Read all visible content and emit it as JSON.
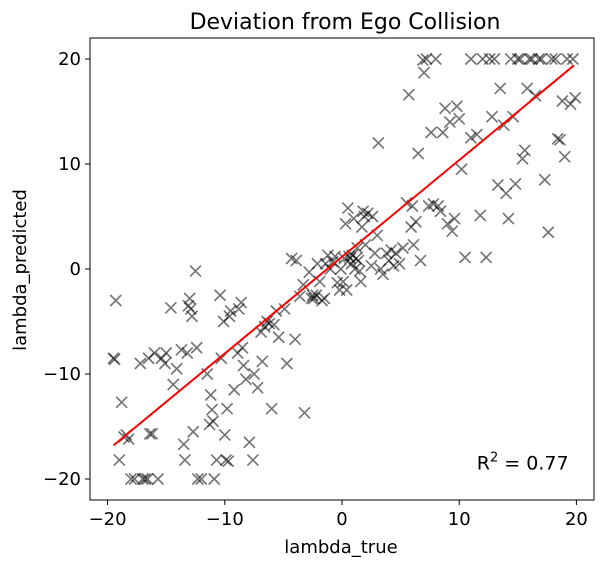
{
  "chart_data": {
    "type": "scatter",
    "title": "Deviation from Ego Collision",
    "xlabel": "lambda_true",
    "ylabel": "lambda_predicted",
    "xlim": [
      -21.5,
      21.5
    ],
    "ylim": [
      -22,
      22
    ],
    "xticks": [
      -20,
      -10,
      0,
      10,
      20
    ],
    "yticks": [
      -20,
      -10,
      0,
      10,
      20
    ],
    "xtick_labels": [
      "−20",
      "−10",
      "0",
      "10",
      "20"
    ],
    "ytick_labels": [
      "−20",
      "−10",
      "0",
      "10",
      "20"
    ],
    "grid": false,
    "marker": "x",
    "marker_color": "#000000",
    "marker_alpha": 0.55,
    "fit_line": {
      "color": "#ff0000",
      "x": [
        -19.5,
        19.8
      ],
      "y": [
        -16.8,
        19.4
      ]
    },
    "annotation": {
      "base": "R",
      "exponent": "2",
      "rest": " = 0.77",
      "x": 11.5,
      "y": -18.5
    },
    "points": [
      [
        -19.5,
        -8.5
      ],
      [
        -19.4,
        -8.6
      ],
      [
        -19.3,
        -3.0
      ],
      [
        -19.0,
        -18.2
      ],
      [
        -18.8,
        -12.7
      ],
      [
        -18.6,
        -16.0
      ],
      [
        -18.4,
        -15.8
      ],
      [
        -18.2,
        -16.2
      ],
      [
        -18.0,
        -20.0
      ],
      [
        -17.7,
        -20.0
      ],
      [
        -17.2,
        -9.0
      ],
      [
        -17.0,
        -20.0
      ],
      [
        -16.8,
        -20.0
      ],
      [
        -16.6,
        -20.0
      ],
      [
        -16.5,
        -8.5
      ],
      [
        -16.4,
        -15.7
      ],
      [
        -16.2,
        -15.7
      ],
      [
        -16.0,
        -8.0
      ],
      [
        -15.7,
        -20.0
      ],
      [
        -15.4,
        -8.5
      ],
      [
        -15.1,
        -9.0
      ],
      [
        -14.6,
        -3.7
      ],
      [
        -14.4,
        -11.0
      ],
      [
        -14.1,
        -9.5
      ],
      [
        -13.7,
        -7.7
      ],
      [
        -13.5,
        -16.7
      ],
      [
        -13.4,
        -18.2
      ],
      [
        -13.2,
        -8.0
      ],
      [
        -13.1,
        -3.5
      ],
      [
        -13.0,
        -2.8
      ],
      [
        -12.9,
        -3.8
      ],
      [
        -12.8,
        -4.5
      ],
      [
        -12.7,
        -15.5
      ],
      [
        -12.5,
        -0.2
      ],
      [
        -12.3,
        -20.0
      ],
      [
        -12.0,
        -20.0
      ],
      [
        -11.5,
        -10.0
      ],
      [
        -11.3,
        -14.8
      ],
      [
        -11.2,
        -12.0
      ],
      [
        -11.1,
        -13.4
      ],
      [
        -11.0,
        -14.5
      ],
      [
        -10.9,
        -20.0
      ],
      [
        -10.7,
        -18.2
      ],
      [
        -10.4,
        -2.5
      ],
      [
        -10.3,
        -8.5
      ],
      [
        -10.1,
        -5.0
      ],
      [
        -10.0,
        -15.8
      ],
      [
        -9.9,
        -18.2
      ],
      [
        -9.8,
        -13.3
      ],
      [
        -9.7,
        -18.3
      ],
      [
        -9.6,
        -4.5
      ],
      [
        -9.5,
        -4.0
      ],
      [
        -9.2,
        -11.5
      ],
      [
        -8.9,
        -8.0
      ],
      [
        -8.8,
        -3.8
      ],
      [
        -8.6,
        -3.2
      ],
      [
        -8.5,
        -7.5
      ],
      [
        -8.4,
        -9.2
      ],
      [
        -8.2,
        -10.5
      ],
      [
        -7.6,
        -18.2
      ],
      [
        -7.5,
        -10.0
      ],
      [
        -7.2,
        -11.3
      ],
      [
        -6.9,
        -6.0
      ],
      [
        -6.8,
        -8.8
      ],
      [
        -6.6,
        -5.5
      ],
      [
        -6.4,
        -5.0
      ],
      [
        -6.2,
        -5.2
      ],
      [
        -6.0,
        -13.3
      ],
      [
        -5.8,
        -5.3
      ],
      [
        -5.6,
        -4.0
      ],
      [
        -5.4,
        -6.5
      ],
      [
        -4.9,
        -3.8
      ],
      [
        -4.7,
        -9.0
      ],
      [
        -4.3,
        1.0
      ],
      [
        -4.0,
        -6.7
      ],
      [
        -3.9,
        0.8
      ],
      [
        -3.6,
        -2.6
      ],
      [
        -3.3,
        -1.5
      ],
      [
        -3.2,
        -13.7
      ],
      [
        -2.8,
        -0.3
      ],
      [
        -2.6,
        -2.8
      ],
      [
        -2.4,
        -2.8
      ],
      [
        -2.2,
        -2.5
      ],
      [
        -2.1,
        0.5
      ],
      [
        -1.9,
        -1.2
      ],
      [
        -1.7,
        -3.0
      ],
      [
        -1.5,
        -2.8
      ],
      [
        -1.4,
        0.5
      ],
      [
        -1.2,
        1.3
      ],
      [
        -1.0,
        0.0
      ],
      [
        -0.8,
        0.7
      ],
      [
        -0.6,
        1.2
      ],
      [
        -0.4,
        -1.3
      ],
      [
        -0.2,
        -2.0
      ],
      [
        -0.1,
        0.0
      ],
      [
        0.1,
        -1.2
      ],
      [
        0.2,
        1.0
      ],
      [
        0.3,
        4.3
      ],
      [
        0.4,
        -2.0
      ],
      [
        0.5,
        5.8
      ],
      [
        0.6,
        1.2
      ],
      [
        0.7,
        1.0
      ],
      [
        0.8,
        0.5
      ],
      [
        0.9,
        1.3
      ],
      [
        1.0,
        4.8
      ],
      [
        1.1,
        0.0
      ],
      [
        1.2,
        1.0
      ],
      [
        1.3,
        2.0
      ],
      [
        1.4,
        0.8
      ],
      [
        1.5,
        -0.2
      ],
      [
        1.6,
        -1.2
      ],
      [
        1.7,
        4.0
      ],
      [
        1.8,
        5.5
      ],
      [
        1.9,
        5.0
      ],
      [
        2.0,
        2.3
      ],
      [
        2.2,
        5.3
      ],
      [
        2.5,
        0.3
      ],
      [
        2.6,
        5.0
      ],
      [
        2.8,
        1.5
      ],
      [
        3.0,
        3.2
      ],
      [
        3.3,
        0.0
      ],
      [
        3.5,
        -0.5
      ],
      [
        3.8,
        1.5
      ],
      [
        4.0,
        0.8
      ],
      [
        4.2,
        1.8
      ],
      [
        4.4,
        0.3
      ],
      [
        4.6,
        1.5
      ],
      [
        4.9,
        0.5
      ],
      [
        5.2,
        2.0
      ],
      [
        5.5,
        6.3
      ],
      [
        5.7,
        16.6
      ],
      [
        5.9,
        4.0
      ],
      [
        6.0,
        6.0
      ],
      [
        6.1,
        2.3
      ],
      [
        6.3,
        4.5
      ],
      [
        6.5,
        11.0
      ],
      [
        6.7,
        0.8
      ],
      [
        6.9,
        19.9
      ],
      [
        7.0,
        18.7
      ],
      [
        7.2,
        20.0
      ],
      [
        7.4,
        6.0
      ],
      [
        7.6,
        13.0
      ],
      [
        7.8,
        6.2
      ],
      [
        8.0,
        20.0
      ],
      [
        8.2,
        6.0
      ],
      [
        8.4,
        5.5
      ],
      [
        8.6,
        13.0
      ],
      [
        8.8,
        15.3
      ],
      [
        9.0,
        4.3
      ],
      [
        9.2,
        14.0
      ],
      [
        9.4,
        3.6
      ],
      [
        9.6,
        4.8
      ],
      [
        9.8,
        15.5
      ],
      [
        10.0,
        14.3
      ],
      [
        10.2,
        9.5
      ],
      [
        10.5,
        1.1
      ],
      [
        11.0,
        20.0
      ],
      [
        11.5,
        12.8
      ],
      [
        11.8,
        5.1
      ],
      [
        12.0,
        20.0
      ],
      [
        12.3,
        1.1
      ],
      [
        12.6,
        20.0
      ],
      [
        12.8,
        14.5
      ],
      [
        13.0,
        20.0
      ],
      [
        13.3,
        8.0
      ],
      [
        13.5,
        17.2
      ],
      [
        13.8,
        13.7
      ],
      [
        14.0,
        7.2
      ],
      [
        14.2,
        4.8
      ],
      [
        14.4,
        20.0
      ],
      [
        14.6,
        14.5
      ],
      [
        14.8,
        8.1
      ],
      [
        15.0,
        20.0
      ],
      [
        15.2,
        20.0
      ],
      [
        15.4,
        10.5
      ],
      [
        15.6,
        11.3
      ],
      [
        15.8,
        17.2
      ],
      [
        16.0,
        20.0
      ],
      [
        16.2,
        20.0
      ],
      [
        16.5,
        16.5
      ],
      [
        16.8,
        20.0
      ],
      [
        17.0,
        20.0
      ],
      [
        17.3,
        8.5
      ],
      [
        17.6,
        3.5
      ],
      [
        17.9,
        20.0
      ],
      [
        18.2,
        20.0
      ],
      [
        18.4,
        12.4
      ],
      [
        18.6,
        12.3
      ],
      [
        18.8,
        16.0
      ],
      [
        19.0,
        10.7
      ],
      [
        19.2,
        20.0
      ],
      [
        19.5,
        15.7
      ],
      [
        19.7,
        20.0
      ],
      [
        19.9,
        16.3
      ],
      [
        -15.0,
        -8.0
      ],
      [
        -12.4,
        -7.5
      ],
      [
        -7.9,
        -16.5
      ],
      [
        -2.5,
        -2.5
      ],
      [
        3.1,
        12.0
      ],
      [
        11.0,
        12.5
      ]
    ]
  }
}
